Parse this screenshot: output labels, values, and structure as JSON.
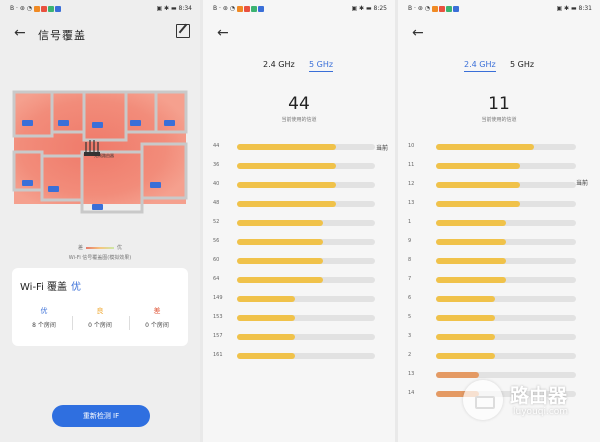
{
  "status_left": {
    "p1": "B ‧ ⊛ ◔",
    "p2": "B ‧ ⊛ ◔",
    "p3": "B ‧ ⊛ ◔"
  },
  "status_right": {
    "p1": "▣ ✱ ▬ 8:34",
    "p2": "▣ ✱ ▬ 8:25",
    "p3": "▣ ✱ ▬ 8:31"
  },
  "status_colors": [
    "#f08a24",
    "#e9513f",
    "#3cb371",
    "#3a6fd8",
    "#f0b32a"
  ],
  "coverage": {
    "title": "信号覆盖",
    "legend_low": "差",
    "legend_high": "优",
    "legend_caption": "Wi-Fi 信号覆盖图(模拟效果)",
    "router_label": "无线路由器",
    "room_label": "客厅",
    "card_title": "Wi-Fi 覆盖",
    "card_grade": "优",
    "stats": [
      {
        "grade": "优",
        "count": "8 个房间",
        "color": "#3a6fd8"
      },
      {
        "grade": "良",
        "count": "0 个房间",
        "color": "#f0a830"
      },
      {
        "grade": "差",
        "count": "0 个房间",
        "color": "#e05a3c"
      }
    ],
    "recheck_button": "重新检测 IF"
  },
  "channels_5g": {
    "tab1": "2.4 GHz",
    "tab2": "5 GHz",
    "big_number": "44",
    "subtitle": "当前使用的信道",
    "current_label": "当前",
    "rows": [
      {
        "label": "44",
        "value": 0.72,
        "current": true
      },
      {
        "label": "36",
        "value": 0.72
      },
      {
        "label": "40",
        "value": 0.72
      },
      {
        "label": "48",
        "value": 0.72
      },
      {
        "label": "52",
        "value": 0.62
      },
      {
        "label": "56",
        "value": 0.62
      },
      {
        "label": "60",
        "value": 0.62
      },
      {
        "label": "64",
        "value": 0.62
      },
      {
        "label": "149",
        "value": 0.42
      },
      {
        "label": "153",
        "value": 0.42
      },
      {
        "label": "157",
        "value": 0.42
      },
      {
        "label": "161",
        "value": 0.42
      }
    ]
  },
  "channels_24g": {
    "tab1": "2.4 GHz",
    "tab2": "5 GHz",
    "big_number": "11",
    "subtitle": "当前使用的信道",
    "current_label": "当前",
    "rows": [
      {
        "label": "10",
        "value": 0.7
      },
      {
        "label": "11",
        "value": 0.6,
        "current": true
      },
      {
        "label": "12",
        "value": 0.6
      },
      {
        "label": "13",
        "value": 0.6
      },
      {
        "label": "1",
        "value": 0.5
      },
      {
        "label": "9",
        "value": 0.5
      },
      {
        "label": "8",
        "value": 0.5
      },
      {
        "label": "7",
        "value": 0.5
      },
      {
        "label": "6",
        "value": 0.42
      },
      {
        "label": "5",
        "value": 0.42
      },
      {
        "label": "3",
        "value": 0.42
      },
      {
        "label": "2",
        "value": 0.42
      },
      {
        "label": "13",
        "value": 0.31,
        "color": "#e49a64"
      },
      {
        "label": "14",
        "value": 0.31,
        "color": "#e49a64"
      }
    ]
  },
  "bar_color": "#f0c24a",
  "watermark": {
    "text": "路由器",
    "url": "luyouqi.com"
  }
}
